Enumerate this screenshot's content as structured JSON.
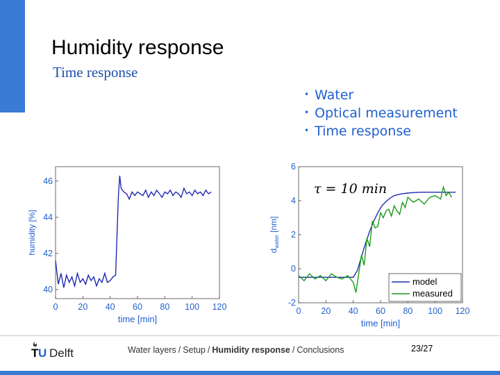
{
  "colors": {
    "accent": "#3a7bd5",
    "subtitle": "#1a4ea8",
    "bullets": "#1f5fcf",
    "model": "#1f2bb0",
    "measured": "#1a9a1a",
    "axis_text": "#1f5fcf",
    "footer_strip": "#3a7bd5"
  },
  "slide": {
    "title": "Humidity response",
    "subtitle": "Time response",
    "bullets": [
      "Water",
      "Optical measurement",
      "Time response"
    ]
  },
  "footer": {
    "logo_text": "TUDelft",
    "breadcrumb": [
      {
        "text": "Water layers",
        "current": false
      },
      {
        "text": "Setup",
        "current": false
      },
      {
        "text": "Humidity response",
        "current": true
      },
      {
        "text": "Conclusions",
        "current": false
      }
    ],
    "page": "23/27"
  },
  "chart_data": [
    {
      "type": "line",
      "xlabel": "time [min]",
      "ylabel": "humidity [%]",
      "xlim": [
        0,
        120
      ],
      "ylim": [
        39.5,
        46.8
      ],
      "xticks": [
        0,
        20,
        40,
        60,
        80,
        100,
        120
      ],
      "yticks": [
        40,
        42,
        44,
        46
      ],
      "grid": false,
      "series": [
        {
          "x": [
            0,
            2,
            4,
            6,
            8,
            10,
            12,
            14,
            16,
            18,
            20,
            22,
            24,
            26,
            28,
            30,
            32,
            34,
            36,
            38,
            40,
            42,
            44,
            45,
            46,
            47,
            48,
            50,
            52,
            54,
            56,
            58,
            60,
            62,
            64,
            66,
            68,
            70,
            72,
            74,
            76,
            78,
            80,
            82,
            84,
            86,
            88,
            90,
            92,
            94,
            96,
            98,
            100,
            102,
            104,
            106,
            108,
            110,
            112,
            114
          ],
          "y": [
            41.6,
            40.3,
            40.9,
            40.1,
            40.8,
            40.4,
            40.7,
            40.2,
            40.9,
            40.4,
            40.6,
            40.3,
            40.8,
            40.5,
            40.7,
            40.2,
            40.6,
            40.4,
            40.9,
            40.4,
            40.5,
            40.7,
            40.8,
            43.0,
            45.2,
            46.3,
            45.6,
            45.4,
            45.3,
            45.0,
            45.4,
            45.2,
            45.4,
            45.3,
            45.2,
            45.5,
            45.1,
            45.4,
            45.2,
            45.5,
            45.3,
            45.1,
            45.4,
            45.3,
            45.5,
            45.2,
            45.4,
            45.3,
            45.1,
            45.6,
            45.3,
            45.4,
            45.2,
            45.5,
            45.3,
            45.4,
            45.2,
            45.5,
            45.3,
            45.4
          ]
        }
      ]
    },
    {
      "type": "line",
      "xlabel": "time [min]",
      "ylabel": "d_water [nm]",
      "ylabel_main": "d",
      "ylabel_sub": "water",
      "ylabel_unit": " [nm]",
      "xlim": [
        0,
        120
      ],
      "ylim": [
        -2,
        6
      ],
      "xticks": [
        0,
        20,
        40,
        60,
        80,
        100,
        120
      ],
      "yticks": [
        -2,
        0,
        2,
        4,
        6
      ],
      "annotation": "τ = 10 min",
      "legend": "bottom-right",
      "grid": false,
      "series": [
        {
          "name": "model",
          "x": [
            0,
            10,
            20,
            30,
            40,
            43,
            46,
            49,
            52,
            55,
            58,
            61,
            64,
            67,
            70,
            75,
            80,
            85,
            90,
            95,
            100,
            110,
            115
          ],
          "y": [
            -0.5,
            -0.5,
            -0.5,
            -0.5,
            -0.5,
            -0.1,
            0.7,
            1.5,
            2.2,
            2.8,
            3.3,
            3.7,
            3.95,
            4.15,
            4.3,
            4.4,
            4.45,
            4.48,
            4.5,
            4.5,
            4.5,
            4.5,
            4.5
          ]
        },
        {
          "name": "measured",
          "x": [
            0,
            4,
            8,
            12,
            16,
            20,
            24,
            28,
            32,
            36,
            40,
            42,
            44,
            46,
            48,
            50,
            52,
            54,
            56,
            58,
            60,
            62,
            64,
            66,
            68,
            70,
            72,
            74,
            76,
            78,
            80,
            84,
            88,
            92,
            96,
            100,
            104,
            106,
            108,
            110,
            112
          ],
          "y": [
            -0.4,
            -0.7,
            -0.3,
            -0.6,
            -0.4,
            -0.7,
            -0.3,
            -0.5,
            -0.6,
            -0.4,
            -0.8,
            -1.4,
            -0.3,
            0.8,
            0.2,
            1.8,
            1.3,
            2.8,
            2.4,
            2.5,
            3.3,
            3.0,
            3.4,
            3.5,
            3.1,
            3.7,
            3.4,
            3.2,
            3.9,
            3.6,
            4.2,
            3.9,
            4.1,
            3.8,
            4.2,
            4.3,
            4.1,
            4.8,
            4.3,
            4.5,
            4.2
          ]
        }
      ]
    }
  ]
}
